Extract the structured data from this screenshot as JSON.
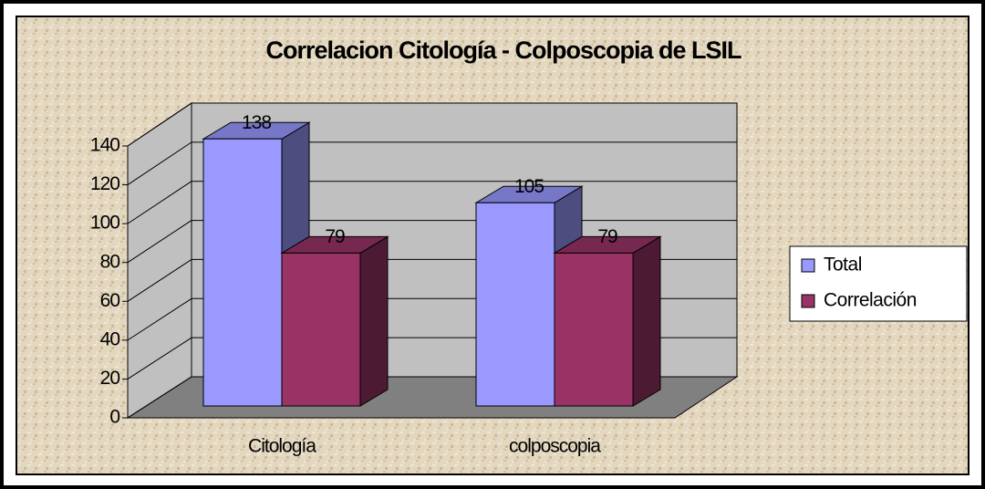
{
  "chart_data": {
    "type": "bar3d",
    "title": "Correlacion Citología - Colposcopia  de LSIL",
    "categories": [
      "Citología",
      "colposcopia"
    ],
    "series": [
      {
        "name": "Total",
        "color": "#9999ff",
        "values": [
          138,
          105
        ]
      },
      {
        "name": "Correlación",
        "color": "#993366",
        "values": [
          79,
          79
        ]
      }
    ],
    "ylim": [
      0,
      140
    ],
    "yticks": [
      0,
      20,
      40,
      60,
      80,
      100,
      120,
      140
    ],
    "grid": true,
    "legend": "right"
  }
}
